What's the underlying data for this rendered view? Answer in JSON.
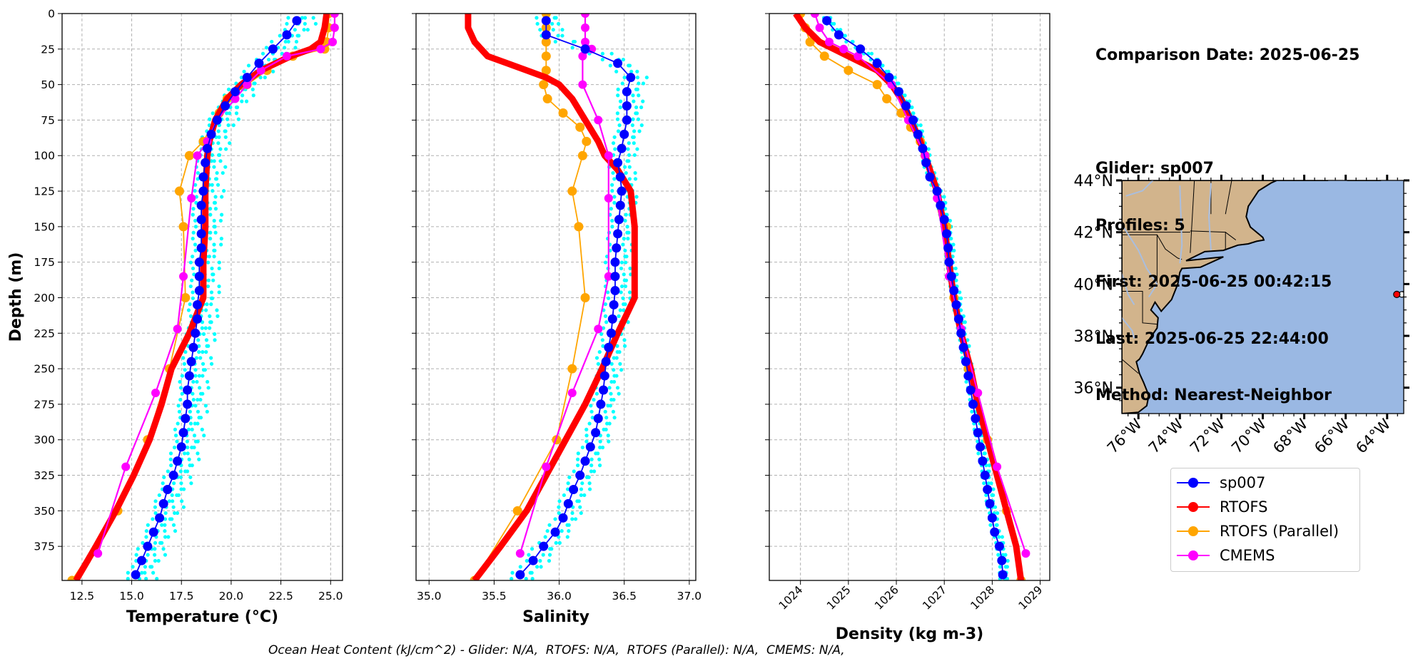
{
  "info": {
    "comparison_date": "Comparison Date: 2025-06-25",
    "glider": "Glider: sp007",
    "profiles": "Profiles: 5",
    "first": "First: 2025-06-25 00:42:15",
    "last": "Last: 2025-06-25 22:44:00",
    "method": "Method: Nearest-Neighbor"
  },
  "footer": "Ocean Heat Content (kJ/cm^2) - Glider: N/A,  RTOFS: N/A,  RTOFS (Parallel): N/A,  CMEMS: N/A,",
  "legend": [
    {
      "label": "sp007",
      "color": "#0000ff"
    },
    {
      "label": "RTOFS",
      "color": "#ff0000"
    },
    {
      "label": "RTOFS (Parallel)",
      "color": "#ffa500"
    },
    {
      "label": "CMEMS",
      "color": "#ff00ff"
    }
  ],
  "colors": {
    "glider": "#0000ff",
    "rtofs": "#ff0000",
    "parallel": "#ffa500",
    "cmems": "#ff00ff",
    "raw": "#00ffff",
    "land": "#d2b48c",
    "ocean": "#9ab8e3"
  },
  "chart_data": [
    {
      "type": "line",
      "xlabel": "Temperature (°C)",
      "ylabel": "Depth (m)",
      "xlim": [
        11.5,
        25.6
      ],
      "ylim": [
        399,
        0
      ],
      "xticks": [
        "12.5",
        "15.0",
        "17.5",
        "20.0",
        "22.5",
        "25.0"
      ],
      "yticks": [
        "0",
        "25",
        "50",
        "75",
        "100",
        "125",
        "150",
        "175",
        "200",
        "225",
        "250",
        "275",
        "300",
        "325",
        "350",
        "375"
      ],
      "grid": true,
      "series": [
        {
          "name": "sp007",
          "depth": [
            5,
            15,
            25,
            35,
            45,
            55,
            65,
            75,
            85,
            95,
            105,
            115,
            125,
            135,
            145,
            155,
            165,
            175,
            185,
            195,
            205,
            215,
            225,
            235,
            245,
            255,
            265,
            275,
            285,
            295,
            305,
            315,
            325,
            335,
            345,
            355,
            365,
            375,
            385,
            395
          ],
          "values": [
            23.3,
            22.8,
            22.1,
            21.4,
            20.8,
            20.2,
            19.7,
            19.3,
            19.0,
            18.8,
            18.7,
            18.6,
            18.6,
            18.5,
            18.5,
            18.5,
            18.5,
            18.4,
            18.4,
            18.4,
            18.3,
            18.3,
            18.2,
            18.1,
            18.0,
            17.9,
            17.8,
            17.8,
            17.7,
            17.6,
            17.5,
            17.3,
            17.1,
            16.8,
            16.6,
            16.4,
            16.1,
            15.8,
            15.5,
            15.2
          ]
        },
        {
          "name": "RTOFS",
          "depth": [
            0,
            10,
            20,
            25,
            30,
            40,
            50,
            60,
            75,
            90,
            100,
            125,
            150,
            175,
            200,
            225,
            250,
            275,
            300,
            325,
            350,
            375,
            399
          ],
          "values": [
            24.8,
            24.7,
            24.5,
            24.0,
            23.0,
            21.5,
            20.5,
            19.8,
            19.2,
            18.9,
            18.8,
            18.7,
            18.7,
            18.6,
            18.6,
            17.9,
            17.0,
            16.5,
            15.9,
            15.1,
            14.2,
            13.2,
            12.2
          ]
        },
        {
          "name": "RTOFS (Parallel)",
          "depth": [
            0,
            10,
            20,
            25,
            30,
            40,
            50,
            60,
            70,
            90,
            100,
            125,
            150,
            200,
            250,
            300,
            350,
            399
          ],
          "values": [
            24.9,
            24.9,
            24.8,
            24.7,
            23.1,
            21.8,
            20.8,
            19.8,
            19.4,
            18.6,
            17.9,
            17.4,
            17.6,
            17.7,
            16.9,
            15.8,
            14.3,
            12.0
          ]
        },
        {
          "name": "CMEMS",
          "depth": [
            0,
            10,
            20,
            25,
            30,
            40,
            50,
            60,
            75,
            90,
            100,
            130,
            185,
            222,
            267,
            319,
            380
          ],
          "values": [
            25.2,
            25.2,
            25.1,
            24.5,
            22.8,
            21.5,
            20.8,
            20.2,
            19.3,
            18.8,
            18.3,
            18.0,
            17.6,
            17.3,
            16.2,
            14.7,
            13.3
          ]
        }
      ]
    },
    {
      "type": "line",
      "xlabel": "Salinity",
      "xlim": [
        34.9,
        37.05
      ],
      "ylim": [
        399,
        0
      ],
      "xticks": [
        "35.0",
        "35.5",
        "36.0",
        "36.5",
        "37.0"
      ],
      "grid": true,
      "series": [
        {
          "name": "sp007",
          "depth": [
            5,
            15,
            25,
            35,
            45,
            55,
            65,
            75,
            85,
            95,
            105,
            115,
            125,
            135,
            145,
            155,
            165,
            175,
            185,
            195,
            205,
            215,
            225,
            235,
            245,
            255,
            265,
            275,
            285,
            295,
            305,
            315,
            325,
            335,
            345,
            355,
            365,
            375,
            385,
            395
          ],
          "values": [
            35.9,
            35.9,
            36.2,
            36.45,
            36.55,
            36.52,
            36.52,
            36.52,
            36.5,
            36.48,
            36.45,
            36.47,
            36.48,
            36.47,
            36.46,
            36.45,
            36.44,
            36.43,
            36.43,
            36.43,
            36.42,
            36.41,
            36.4,
            36.38,
            36.36,
            36.35,
            36.34,
            36.32,
            36.3,
            36.28,
            36.24,
            36.2,
            36.16,
            36.11,
            36.07,
            36.03,
            35.97,
            35.88,
            35.8,
            35.7
          ]
        },
        {
          "name": "RTOFS",
          "depth": [
            0,
            10,
            20,
            30,
            35,
            40,
            45,
            50,
            60,
            75,
            90,
            100,
            110,
            125,
            150,
            175,
            200,
            225,
            250,
            275,
            300,
            325,
            350,
            375,
            399
          ],
          "values": [
            35.3,
            35.3,
            35.35,
            35.45,
            35.6,
            35.75,
            35.9,
            36.0,
            36.1,
            36.2,
            36.3,
            36.35,
            36.45,
            36.55,
            36.58,
            36.58,
            36.58,
            36.45,
            36.33,
            36.2,
            36.05,
            35.9,
            35.75,
            35.55,
            35.35
          ]
        },
        {
          "name": "RTOFS (Parallel)",
          "depth": [
            0,
            10,
            20,
            30,
            40,
            50,
            60,
            70,
            80,
            90,
            100,
            125,
            150,
            200,
            250,
            300,
            350,
            399
          ],
          "values": [
            35.9,
            35.9,
            35.9,
            35.9,
            35.9,
            35.88,
            35.91,
            36.03,
            36.16,
            36.21,
            36.18,
            36.1,
            36.15,
            36.2,
            36.1,
            35.98,
            35.68,
            35.35
          ]
        },
        {
          "name": "CMEMS",
          "depth": [
            0,
            10,
            20,
            25,
            30,
            50,
            75,
            100,
            130,
            185,
            222,
            267,
            319,
            380
          ],
          "values": [
            36.2,
            36.2,
            36.2,
            36.25,
            36.18,
            36.18,
            36.3,
            36.38,
            36.38,
            36.38,
            36.3,
            36.1,
            35.9,
            35.7
          ]
        }
      ]
    },
    {
      "type": "line",
      "xlabel": "Density (kg m-3)",
      "xlim": [
        1023.35,
        1029.2
      ],
      "ylim": [
        399,
        0
      ],
      "xticks": [
        "1024",
        "1025",
        "1026",
        "1027",
        "1028",
        "1029"
      ],
      "grid": true,
      "series": [
        {
          "name": "sp007",
          "depth": [
            5,
            15,
            25,
            35,
            45,
            55,
            65,
            75,
            85,
            95,
            105,
            115,
            125,
            135,
            145,
            155,
            165,
            175,
            185,
            195,
            205,
            215,
            225,
            235,
            245,
            255,
            265,
            275,
            285,
            295,
            305,
            315,
            325,
            335,
            345,
            355,
            365,
            375,
            385,
            395
          ],
          "values": [
            1024.55,
            1024.8,
            1025.25,
            1025.6,
            1025.85,
            1026.05,
            1026.2,
            1026.35,
            1026.45,
            1026.55,
            1026.62,
            1026.7,
            1026.85,
            1026.92,
            1027.0,
            1027.05,
            1027.08,
            1027.1,
            1027.15,
            1027.2,
            1027.25,
            1027.3,
            1027.35,
            1027.4,
            1027.45,
            1027.5,
            1027.55,
            1027.6,
            1027.65,
            1027.7,
            1027.75,
            1027.8,
            1027.85,
            1027.9,
            1027.95,
            1028.0,
            1028.05,
            1028.15,
            1028.2,
            1028.22
          ]
        },
        {
          "name": "RTOFS",
          "depth": [
            0,
            10,
            20,
            25,
            30,
            40,
            50,
            60,
            75,
            90,
            100,
            125,
            150,
            175,
            200,
            225,
            250,
            275,
            300,
            325,
            350,
            375,
            399
          ],
          "values": [
            1023.9,
            1024.1,
            1024.4,
            1024.7,
            1025.0,
            1025.6,
            1025.9,
            1026.1,
            1026.3,
            1026.5,
            1026.6,
            1026.85,
            1027.0,
            1027.1,
            1027.2,
            1027.35,
            1027.55,
            1027.7,
            1027.9,
            1028.1,
            1028.3,
            1028.5,
            1028.6
          ]
        },
        {
          "name": "RTOFS (Parallel)",
          "depth": [
            0,
            10,
            20,
            30,
            40,
            50,
            60,
            70,
            80,
            90,
            100,
            125,
            150,
            200,
            250,
            300,
            350,
            399
          ],
          "values": [
            1024.0,
            1024.1,
            1024.2,
            1024.5,
            1025.0,
            1025.6,
            1025.8,
            1026.1,
            1026.3,
            1026.5,
            1026.6,
            1026.85,
            1027.05,
            1027.2,
            1027.5,
            1027.9,
            1028.3,
            1028.6
          ]
        },
        {
          "name": "CMEMS",
          "depth": [
            0,
            10,
            20,
            25,
            30,
            50,
            75,
            100,
            130,
            185,
            222,
            267,
            319,
            380
          ],
          "values": [
            1024.3,
            1024.4,
            1024.6,
            1024.9,
            1025.2,
            1025.9,
            1026.25,
            1026.6,
            1026.85,
            1027.1,
            1027.35,
            1027.7,
            1028.1,
            1028.7
          ]
        }
      ]
    }
  ],
  "map": {
    "lat_ticks": [
      "44°N",
      "42°N",
      "40°N",
      "38°N",
      "36°N"
    ],
    "lon_ticks": [
      "76°W",
      "74°W",
      "72°W",
      "70°W",
      "68°W",
      "66°W",
      "64°W"
    ],
    "extent": {
      "lon": [
        -76.8,
        -63.2
      ],
      "lat": [
        35.0,
        44.0
      ]
    },
    "glider_position": {
      "lat": 39.6,
      "lon": -63.5
    }
  }
}
